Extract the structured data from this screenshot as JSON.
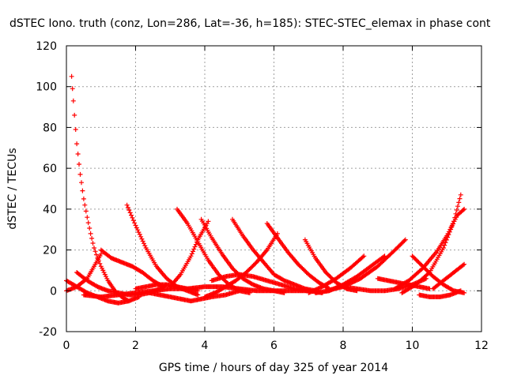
{
  "chart_data": {
    "type": "scatter",
    "title": "dSTEC Iono. truth (conz, Lon=286, Lat=-36, h=185): STEC-STEC_elemax in phase cont",
    "xlabel": "GPS time / hours of day 325 of year 2014",
    "ylabel": "dSTEC  / TECUs",
    "xlim": [
      0,
      12
    ],
    "ylim": [
      -20,
      120
    ],
    "xticks": [
      0,
      2,
      4,
      6,
      8,
      10,
      12
    ],
    "yticks": [
      -20,
      0,
      20,
      40,
      60,
      80,
      100,
      120
    ],
    "grid": true,
    "legend": "none",
    "marker": "plus",
    "color": "#ff0000",
    "series": [
      {
        "x": [
          0.15,
          0.2,
          0.3,
          0.4,
          0.5,
          0.6,
          0.7,
          0.8,
          0.9,
          1.0,
          1.2,
          1.4,
          1.6,
          1.8
        ],
        "y": [
          105,
          93,
          72,
          57,
          45,
          36,
          28,
          21,
          16,
          12,
          5,
          0,
          -3,
          -5
        ]
      },
      {
        "x": [
          0.0,
          0.3,
          0.6,
          0.9,
          1.2,
          1.5,
          1.8,
          2.1
        ],
        "y": [
          5,
          2,
          -1,
          -3,
          -5,
          -6,
          -5,
          -3
        ]
      },
      {
        "x": [
          0.0,
          0.3,
          0.6,
          0.8,
          1.0
        ],
        "y": [
          0,
          2,
          6,
          12,
          18
        ]
      },
      {
        "x": [
          0.3,
          0.6,
          0.9,
          1.2,
          1.5,
          1.8,
          2.1,
          2.4,
          2.7,
          2.9
        ],
        "y": [
          9,
          5,
          2,
          0,
          -1,
          -2,
          -2,
          -1,
          1,
          3
        ]
      },
      {
        "x": [
          0.5,
          1.0,
          1.5,
          2.0,
          2.5,
          3.0,
          3.5,
          4.0,
          4.5,
          5.0,
          5.5,
          6.0,
          6.5,
          7.0
        ],
        "y": [
          -2,
          -3,
          -2,
          -1,
          0,
          1,
          1,
          2,
          2,
          1,
          0,
          0,
          0,
          0
        ]
      },
      {
        "x": [
          1.0,
          1.3,
          1.6,
          1.9,
          2.2,
          2.5,
          2.8
        ],
        "y": [
          20,
          16,
          14,
          12,
          9,
          5,
          2
        ]
      },
      {
        "x": [
          1.75,
          2.0,
          2.3,
          2.6,
          2.9,
          3.2,
          3.5,
          3.8
        ],
        "y": [
          42,
          32,
          21,
          12,
          6,
          2,
          0,
          -2
        ]
      },
      {
        "x": [
          2.0,
          2.3,
          2.6,
          2.9,
          3.2,
          3.5,
          3.8
        ],
        "y": [
          1,
          2,
          3,
          3,
          2,
          1,
          0
        ]
      },
      {
        "x": [
          2.4,
          2.7,
          3.0,
          3.3,
          3.6,
          3.9,
          4.2,
          4.6,
          5.0
        ],
        "y": [
          -1,
          -2,
          -3,
          -4,
          -5,
          -4,
          -3,
          -2,
          0
        ]
      },
      {
        "x": [
          3.2,
          3.5,
          3.8,
          4.1,
          4.4,
          4.7,
          5.0,
          5.3
        ],
        "y": [
          40,
          33,
          24,
          15,
          8,
          3,
          0,
          -1
        ]
      },
      {
        "x": [
          3.0,
          3.3,
          3.6,
          3.8,
          4.0,
          4.1
        ],
        "y": [
          2,
          8,
          17,
          25,
          31,
          34
        ]
      },
      {
        "x": [
          3.9,
          4.2,
          4.5,
          4.8,
          5.1,
          5.4,
          5.7,
          6.0,
          6.3
        ],
        "y": [
          35,
          26,
          18,
          11,
          6,
          3,
          1,
          0,
          -1
        ]
      },
      {
        "x": [
          4.0,
          4.3,
          4.6,
          4.9,
          5.2,
          5.5,
          5.8,
          6.1
        ],
        "y": [
          -3,
          -1,
          2,
          5,
          9,
          14,
          20,
          28
        ]
      },
      {
        "x": [
          4.8,
          5.1,
          5.4,
          5.7,
          6.0,
          6.3,
          6.6,
          6.9,
          7.2
        ],
        "y": [
          35,
          27,
          20,
          14,
          8,
          5,
          3,
          1,
          0
        ]
      },
      {
        "x": [
          4.2,
          4.6,
          5.0,
          5.4,
          5.8,
          6.2,
          6.6,
          7.0,
          7.4
        ],
        "y": [
          5,
          7,
          8,
          7,
          5,
          3,
          1,
          0,
          -1
        ]
      },
      {
        "x": [
          5.8,
          6.1,
          6.4,
          6.7,
          7.0,
          7.3,
          7.6
        ],
        "y": [
          33,
          26,
          19,
          13,
          8,
          4,
          1
        ]
      },
      {
        "x": [
          6.9,
          7.2,
          7.5,
          7.8,
          8.1,
          8.4
        ],
        "y": [
          25,
          16,
          9,
          4,
          1,
          0
        ]
      },
      {
        "x": [
          7.0,
          7.4,
          7.8,
          8.2,
          8.6
        ],
        "y": [
          -1,
          2,
          6,
          11,
          17
        ]
      },
      {
        "x": [
          7.2,
          7.6,
          8.0,
          8.4,
          8.8,
          9.2
        ],
        "y": [
          -1,
          0,
          3,
          7,
          12,
          17
        ]
      },
      {
        "x": [
          7.5,
          8.0,
          8.5,
          9.0,
          9.5,
          9.8
        ],
        "y": [
          0,
          2,
          6,
          12,
          20,
          25
        ]
      },
      {
        "x": [
          8.0,
          8.4,
          8.8,
          9.2,
          9.6,
          10.0,
          10.4
        ],
        "y": [
          2,
          1,
          0,
          0,
          1,
          3,
          6
        ]
      },
      {
        "x": [
          9.0,
          9.3,
          9.6,
          9.9,
          10.2,
          10.5
        ],
        "y": [
          6,
          5,
          4,
          3,
          2,
          1
        ]
      },
      {
        "x": [
          9.5,
          9.9,
          10.3,
          10.7,
          11.0,
          11.3,
          11.5
        ],
        "y": [
          1,
          5,
          11,
          19,
          27,
          37,
          40
        ]
      },
      {
        "x": [
          9.7,
          10.1,
          10.5,
          10.9,
          11.2,
          11.4
        ],
        "y": [
          -1,
          3,
          9,
          21,
          34,
          47
        ]
      },
      {
        "x": [
          10.0,
          10.3,
          10.6,
          10.9,
          11.2,
          11.5
        ],
        "y": [
          17,
          12,
          7,
          3,
          0,
          -1
        ]
      },
      {
        "x": [
          10.2,
          10.5,
          10.8,
          11.1,
          11.4
        ],
        "y": [
          -2,
          -3,
          -3,
          -2,
          0
        ]
      },
      {
        "x": [
          10.6,
          10.9,
          11.2,
          11.5
        ],
        "y": [
          1,
          5,
          9,
          13
        ]
      }
    ]
  }
}
